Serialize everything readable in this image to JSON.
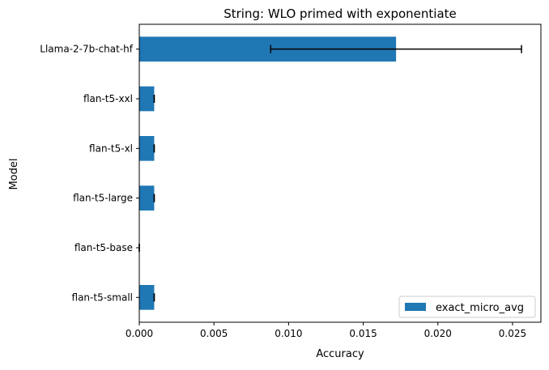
{
  "chart_data": {
    "type": "bar",
    "orientation": "horizontal",
    "title": "String: WLO primed with exponentiate",
    "xlabel": "Accuracy",
    "ylabel": "Model",
    "xlim": [
      0,
      0.0269
    ],
    "x_ticks": [
      0,
      0.005,
      0.01,
      0.015,
      0.02,
      0.025
    ],
    "x_tick_labels": [
      "0.000",
      "0.005",
      "0.010",
      "0.015",
      "0.020",
      "0.025"
    ],
    "categories": [
      "Llama-2-7b-chat-hf",
      "flan-t5-xxl",
      "flan-t5-xl",
      "flan-t5-large",
      "flan-t5-base",
      "flan-t5-small"
    ],
    "series": [
      {
        "name": "exact_micro_avg",
        "color": "#1f77b4",
        "values": [
          0.0172,
          0.001,
          0.001,
          0.001,
          0.0,
          0.001
        ],
        "errors": [
          0.0084,
          0.0,
          0.0,
          0.0,
          0.0,
          0.0
        ]
      }
    ],
    "legend": {
      "position": "bottom-right",
      "entries": [
        "exact_micro_avg"
      ]
    },
    "grid": false
  }
}
